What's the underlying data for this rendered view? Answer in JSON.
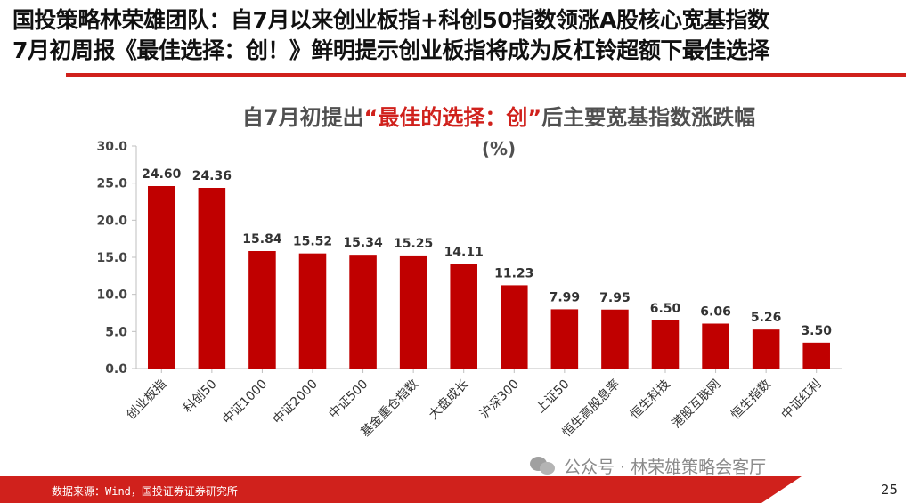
{
  "header": {
    "line1": "国投策略林荣雄团队：自7月以来创业板指+科创50指数领涨A股核心宽基指数",
    "line2": "7月初周报《最佳选择：创！》鲜明提示创业板指将成为反杠铃超额下最佳选择"
  },
  "chart_title": {
    "prefix": "自7月初提出",
    "highlight": "“最佳的选择：创”",
    "suffix": "后主要宽基指数涨跌幅"
  },
  "unit_label": "(%)",
  "colors": {
    "accent": "#d0211c",
    "bar": "#c00000",
    "axis_text": "#444444"
  },
  "chart_data": {
    "type": "bar",
    "categories": [
      "创业板指",
      "科创50",
      "中证1000",
      "中证2000",
      "中证500",
      "基金重仓指数",
      "大盘成长",
      "沪深300",
      "上证50",
      "恒生高股息率",
      "恒生科技",
      "港股互联网",
      "恒生指数",
      "中证红利"
    ],
    "values": [
      24.6,
      24.36,
      15.84,
      15.52,
      15.34,
      15.25,
      14.11,
      11.23,
      7.99,
      7.95,
      6.5,
      6.06,
      5.26,
      3.5
    ],
    "value_labels": [
      "24.60",
      "24.36",
      "15.84",
      "15.52",
      "15.34",
      "15.25",
      "14.11",
      "11.23",
      "7.99",
      "7.95",
      "6.50",
      "6.06",
      "5.26",
      "3.50"
    ],
    "y_ticks": [
      "0.0",
      "5.0",
      "10.0",
      "15.0",
      "20.0",
      "25.0",
      "30.0"
    ],
    "ylim": [
      0,
      30
    ],
    "grid": false
  },
  "footer": {
    "source": "数据来源：Wind，国投证券证券研究所",
    "page": "25"
  },
  "watermark": {
    "text": "公众号 · 林荣雄策略会客厅",
    "icon": "wechat-icon"
  }
}
